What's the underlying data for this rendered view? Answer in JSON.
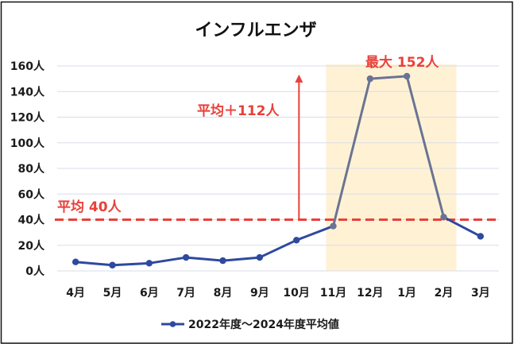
{
  "title": "インフルエンザ",
  "legend": {
    "label": "2022年度～2024年度平均値"
  },
  "annotations": {
    "average_label": "平均 40人",
    "increase_label": "平均＋112人",
    "max_label": "最大 152人"
  },
  "colors": {
    "series": "#2e4a9e",
    "series_highlight": "#6b7394",
    "accent_red": "#e8413a",
    "highlight_fill": "#fff2d4",
    "grid": "#d9dde9",
    "text": "#1a1a1a",
    "border": "#111111"
  },
  "chart_data": {
    "type": "line",
    "title": "インフルエンザ",
    "xlabel": "",
    "ylabel": "",
    "categories": [
      "4月",
      "5月",
      "6月",
      "7月",
      "8月",
      "9月",
      "10月",
      "11月",
      "12月",
      "1月",
      "2月",
      "3月"
    ],
    "series": [
      {
        "name": "2022年度～2024年度平均値",
        "values": [
          7,
          4.5,
          6,
          10.5,
          8,
          10.5,
          24,
          35,
          150,
          152,
          42,
          27
        ]
      }
    ],
    "ylim": [
      0,
      160
    ],
    "yticks": [
      0,
      20,
      40,
      60,
      80,
      100,
      120,
      140,
      160
    ],
    "ytick_labels": [
      "0人",
      "20人",
      "40人",
      "60人",
      "80人",
      "100人",
      "120人",
      "140人",
      "160人"
    ],
    "grid": true,
    "legend_position": "bottom",
    "reference_line": {
      "value": 40,
      "label": "平均 40人",
      "style": "dashed"
    },
    "highlight_range": {
      "from": "11月",
      "to": "2月"
    },
    "annotations": [
      {
        "text": "平均＋112人",
        "type": "arrow",
        "from_value": 40,
        "to_value": 152,
        "at_category_between": [
          "10月",
          "11月"
        ]
      },
      {
        "text": "最大 152人",
        "type": "label",
        "value": 152
      }
    ]
  }
}
